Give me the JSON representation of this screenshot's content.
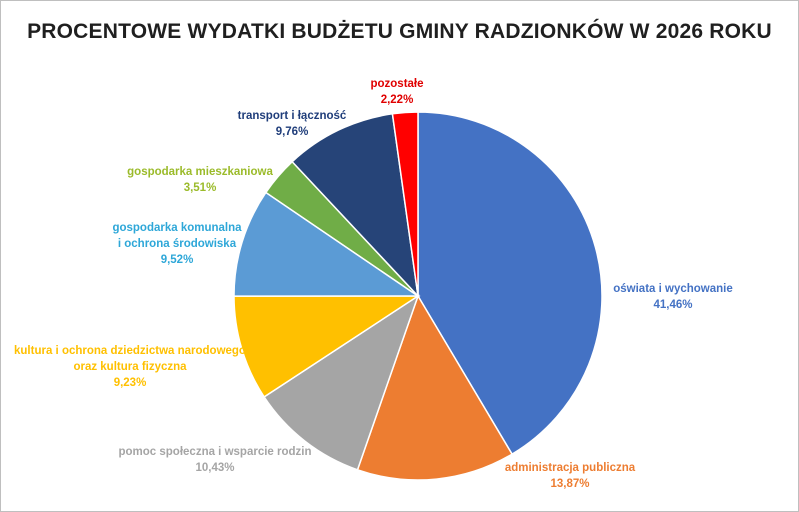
{
  "chart_data": {
    "type": "pie",
    "title": "PROCENTOWE WYDATKI BUDŻETU GMINY RADZIONKÓW W 2026 ROKU",
    "slices": [
      {
        "label": [
          "oświata i wychowanie"
        ],
        "value": 41.46,
        "value_text": "41,46%",
        "color": "#4472c4"
      },
      {
        "label": [
          "administracja publiczna"
        ],
        "value": 13.87,
        "value_text": "13,87%",
        "color": "#ed7d31"
      },
      {
        "label": [
          "pomoc społeczna i wsparcie rodzin"
        ],
        "value": 10.43,
        "value_text": "10,43%",
        "color": "#a5a5a5"
      },
      {
        "label": [
          "kultura i ochrona dziedzictwa narodowego",
          "oraz kultura fizyczna"
        ],
        "value": 9.23,
        "value_text": "9,23%",
        "color": "#ffc000"
      },
      {
        "label": [
          "gospodarka komunalna",
          "i ochrona środowiska"
        ],
        "value": 9.52,
        "value_text": "9,52%",
        "color": "#5b9bd5"
      },
      {
        "label": [
          "gospodarka mieszkaniowa"
        ],
        "value": 3.51,
        "value_text": "3,51%",
        "color": "#70ad47"
      },
      {
        "label": [
          "transport i łączność"
        ],
        "value": 9.76,
        "value_text": "9,76%",
        "color": "#264478"
      },
      {
        "label": [
          "pozostałe"
        ],
        "value": 2.22,
        "value_text": "2,22%",
        "color": "#ff0000"
      }
    ],
    "label_colors": [
      "#4472c4",
      "#ed7d31",
      "#a5a5a5",
      "#ffc000",
      "#2ea7d8",
      "#9bbb2a",
      "#1f3d7a",
      "#e00000"
    ],
    "legend": "none"
  }
}
